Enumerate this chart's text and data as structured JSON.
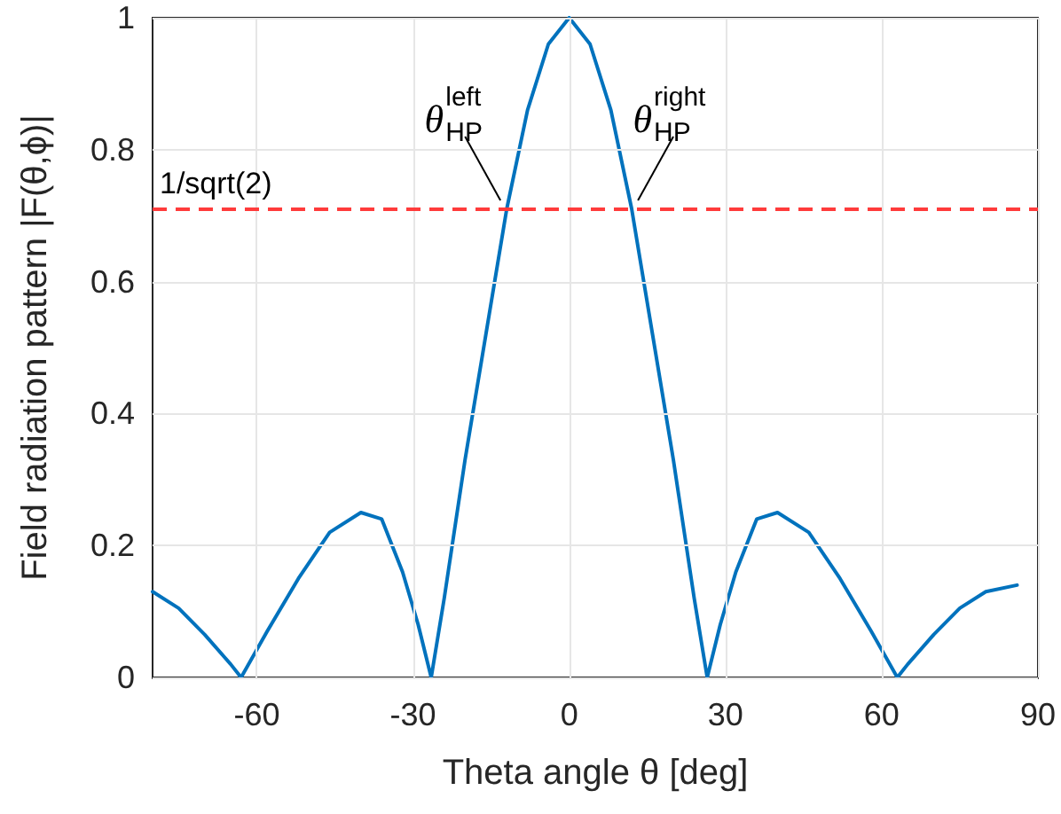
{
  "chart_data": {
    "type": "line",
    "xlabel": "Theta angle θ [deg]",
    "ylabel": "Field radiation pattern |F(θ,ϕ)|",
    "x": [
      -80,
      -75,
      -70,
      -65,
      -63,
      -58,
      -52,
      -46,
      -40,
      -36,
      -32,
      -29,
      -26.5,
      -24,
      -20,
      -16,
      -12,
      -8,
      -4,
      0,
      4,
      8,
      12,
      16,
      20,
      24,
      26.5,
      29,
      32,
      36,
      40,
      46,
      52,
      58,
      63,
      65,
      70,
      75,
      80,
      86
    ],
    "series": [
      {
        "color": "#0072bd",
        "values": [
          0.13,
          0.105,
          0.065,
          0.02,
          0,
          0.07,
          0.15,
          0.22,
          0.25,
          0.24,
          0.16,
          0.08,
          0,
          0.12,
          0.33,
          0.52,
          0.71,
          0.86,
          0.96,
          1,
          0.96,
          0.86,
          0.71,
          0.52,
          0.33,
          0.12,
          0,
          0.08,
          0.16,
          0.24,
          0.25,
          0.22,
          0.15,
          0.07,
          0,
          0.02,
          0.065,
          0.105,
          0.13,
          0.14
        ]
      }
    ],
    "xlim": [
      -80,
      90
    ],
    "xticks": [
      -60,
      -30,
      0,
      30,
      60,
      90
    ],
    "ylim": [
      0,
      1
    ],
    "yticks": [
      0,
      0.2,
      0.4,
      0.6,
      0.8,
      1
    ],
    "grid": true,
    "marker": "none",
    "line_style": "solid",
    "ref_lines": [
      {
        "axis": "y",
        "value": 0.707,
        "label": "1/sqrt(2)",
        "color": "#ff3b3b",
        "line_style": "dashed"
      }
    ],
    "annotations": [
      {
        "text": "θ$^{left}$$_{HP}$",
        "x": -12,
        "y": 0.71
      },
      {
        "text": "θ$^{right}$$_{HP}$",
        "x": 12,
        "y": 0.71
      }
    ]
  }
}
